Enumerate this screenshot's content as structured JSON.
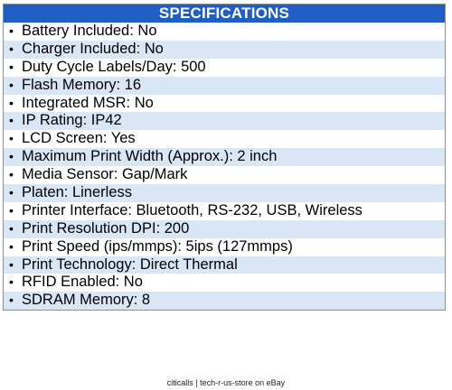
{
  "header": {
    "title": "SPECIFICATIONS"
  },
  "colors": {
    "header_bg": "#1f5fc4",
    "header_text": "#ffffff",
    "row_alt_bg": "#d9e6f5",
    "row_bg": "#ffffff"
  },
  "bullet_glyph": "•",
  "specs": [
    "Battery Included: No",
    "Charger Included: No",
    "Duty Cycle Labels/Day: 500",
    "Flash Memory: 16",
    "Integrated MSR: No",
    "IP Rating: IP42",
    "LCD Screen: Yes",
    "Maximum Print Width (Approx.): 2 inch",
    "Media Sensor: Gap/Mark",
    "Platen: Linerless",
    "Printer Interface: Bluetooth, RS-232, USB, Wireless",
    "Print Resolution DPI: 200",
    "Print Speed (ips/mmps): 5ips (127mmps)",
    "Print Technology: Direct Thermal",
    "RFID Enabled: No",
    "SDRAM Memory: 8"
  ],
  "footer": {
    "text": "citicalls | tech-r-us-store on eBay"
  }
}
